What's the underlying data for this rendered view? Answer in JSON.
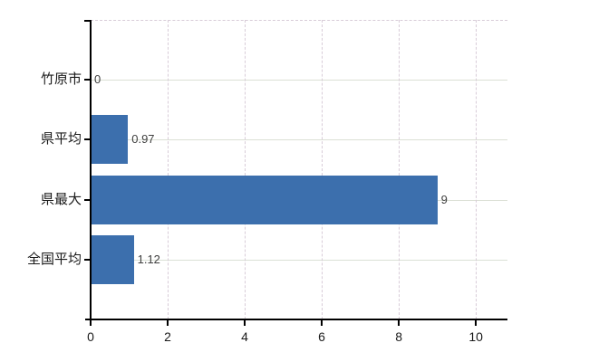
{
  "chart_data": {
    "type": "bar",
    "orientation": "horizontal",
    "title": "",
    "xlabel": "",
    "ylabel": "",
    "categories": [
      "竹原市",
      "県平均",
      "県最大",
      "全国平均"
    ],
    "values": [
      0,
      0.97,
      9,
      1.12
    ],
    "value_labels": [
      "0",
      "0.97",
      "9",
      "1.12"
    ],
    "x_ticks": [
      0,
      2,
      4,
      6,
      8,
      10
    ],
    "x_tick_labels": [
      "0",
      "2",
      "4",
      "6",
      "8",
      "10"
    ],
    "xlim": [
      0,
      10.82
    ],
    "grid": true,
    "legend": false,
    "colors": {
      "bar": "#3c6fad",
      "axis": "#000000",
      "h_gridline": "#dbe0d5",
      "v_gridline": "#d8ccd8",
      "tick_label": "#1a1a1a",
      "value_label": "#3f3f3f",
      "background": "#ffffff"
    }
  }
}
